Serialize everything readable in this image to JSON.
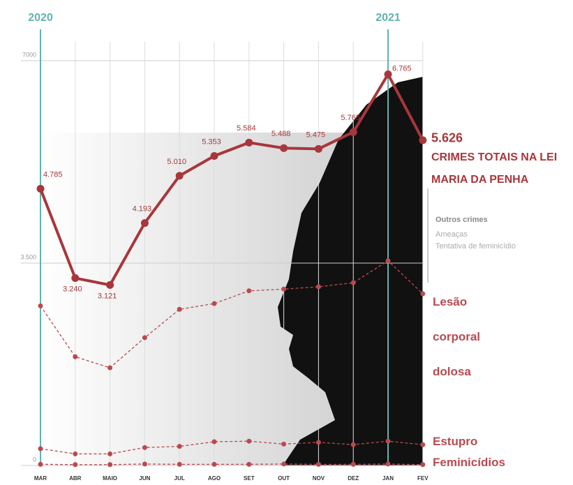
{
  "chart_data": {
    "type": "line",
    "categories": [
      "MAR",
      "ABR",
      "MAIO",
      "JUN",
      "JUL",
      "AGO",
      "SET",
      "OUT",
      "NOV",
      "DEZ",
      "JAN",
      "FEV"
    ],
    "series": [
      {
        "name": "CRIMES TOTAIS NA LEI MARIA DA PENHA",
        "color": "#a8363b",
        "values": [
          4785,
          3240,
          3121,
          4193,
          5010,
          5353,
          5584,
          5488,
          5475,
          5765,
          6765,
          5626
        ],
        "value_labels": [
          "4.785",
          "3.240",
          "3.121",
          "4.193",
          "5.010",
          "5.353",
          "5.584",
          "5.488",
          "5.475",
          "5.765",
          "6.765",
          "5.626"
        ]
      },
      {
        "name": "Lesão corporal dolosa",
        "color": "#b94a50",
        "values": [
          2760,
          1880,
          1690,
          2210,
          2700,
          2800,
          3020,
          3050,
          3090,
          3160,
          3540,
          2970
        ]
      },
      {
        "name": "Estupro",
        "color": "#b94a50",
        "values": [
          290,
          200,
          200,
          310,
          330,
          410,
          420,
          370,
          400,
          360,
          420,
          360
        ]
      },
      {
        "name": "Feminicídios",
        "color": "#b94a50",
        "values": [
          20,
          15,
          15,
          25,
          20,
          20,
          20,
          25,
          20,
          20,
          25,
          15
        ]
      }
    ],
    "ylim": [
      0,
      7000
    ],
    "yticks": [
      0,
      {
        "value": 3500,
        "label": "3.500"
      },
      7000
    ],
    "grid": true,
    "annotations": {
      "year_start": "2020",
      "year_end": "2021",
      "note_title": "Outros crimes",
      "note_items": [
        "Ameaças",
        "Tentativa de feminicídio"
      ]
    }
  }
}
